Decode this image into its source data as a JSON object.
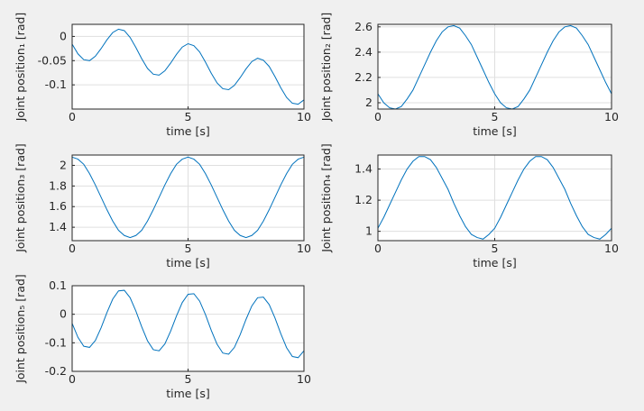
{
  "chart_data": [
    {
      "type": "line",
      "xlabel": "time [s]",
      "ylabel": "Joint position₁ [rad]",
      "grid": true,
      "xlim": [
        0,
        10
      ],
      "xticks": [
        0,
        5,
        10
      ],
      "ylim": [
        -0.15,
        0.025
      ],
      "yticks": [
        -0.1,
        -0.05,
        0
      ],
      "x": [
        0,
        0.25,
        0.5,
        0.75,
        1,
        1.25,
        1.5,
        1.75,
        2,
        2.25,
        2.5,
        2.75,
        3,
        3.25,
        3.5,
        3.75,
        4,
        4.25,
        4.5,
        4.75,
        5,
        5.25,
        5.5,
        5.75,
        6,
        6.25,
        6.5,
        6.75,
        7,
        7.25,
        7.5,
        7.75,
        8,
        8.25,
        8.5,
        8.75,
        9,
        9.25,
        9.5,
        9.75,
        10
      ],
      "series": [
        {
          "color": "#0072bd",
          "values": [
            -0.016,
            -0.036,
            -0.048,
            -0.05,
            -0.041,
            -0.025,
            -0.007,
            0.008,
            0.015,
            0.012,
            -0.002,
            -0.023,
            -0.046,
            -0.066,
            -0.078,
            -0.08,
            -0.071,
            -0.055,
            -0.037,
            -0.022,
            -0.015,
            -0.019,
            -0.032,
            -0.053,
            -0.076,
            -0.096,
            -0.108,
            -0.11,
            -0.101,
            -0.085,
            -0.067,
            -0.052,
            -0.045,
            -0.049,
            -0.062,
            -0.083,
            -0.106,
            -0.126,
            -0.138,
            -0.14,
            -0.131
          ]
        }
      ]
    },
    {
      "type": "line",
      "xlabel": "time [s]",
      "ylabel": "Joint position₂ [rad]",
      "grid": true,
      "xlim": [
        0,
        10
      ],
      "xticks": [
        0,
        5,
        10
      ],
      "ylim": [
        1.95,
        2.62
      ],
      "yticks": [
        2,
        2.2,
        2.4,
        2.6
      ],
      "x": [
        0,
        0.25,
        0.5,
        0.75,
        1,
        1.25,
        1.5,
        1.75,
        2,
        2.25,
        2.5,
        2.75,
        3,
        3.25,
        3.5,
        3.75,
        4,
        4.25,
        4.5,
        4.75,
        5,
        5.25,
        5.5,
        5.75,
        6,
        6.25,
        6.5,
        6.75,
        7,
        7.25,
        7.5,
        7.75,
        8,
        8.25,
        8.5,
        8.75,
        9,
        9.25,
        9.5,
        9.75,
        10
      ],
      "series": [
        {
          "color": "#0072bd",
          "values": [
            2.07,
            2.0,
            1.96,
            1.95,
            1.97,
            2.03,
            2.1,
            2.2,
            2.3,
            2.4,
            2.49,
            2.56,
            2.6,
            2.61,
            2.59,
            2.53,
            2.46,
            2.36,
            2.26,
            2.16,
            2.07,
            2.0,
            1.96,
            1.95,
            1.97,
            2.03,
            2.1,
            2.2,
            2.3,
            2.4,
            2.49,
            2.56,
            2.6,
            2.61,
            2.59,
            2.53,
            2.46,
            2.36,
            2.26,
            2.16,
            2.07
          ]
        }
      ]
    },
    {
      "type": "line",
      "xlabel": "time [s]",
      "ylabel": "Joint position₃ [rad]",
      "grid": true,
      "xlim": [
        0,
        10
      ],
      "xticks": [
        0,
        5,
        10
      ],
      "ylim": [
        1.27,
        2.1
      ],
      "yticks": [
        1.4,
        1.6,
        1.8,
        2
      ],
      "x": [
        0,
        0.25,
        0.5,
        0.75,
        1,
        1.25,
        1.5,
        1.75,
        2,
        2.25,
        2.5,
        2.75,
        3,
        3.25,
        3.5,
        3.75,
        4,
        4.25,
        4.5,
        4.75,
        5,
        5.25,
        5.5,
        5.75,
        6,
        6.25,
        6.5,
        6.75,
        7,
        7.25,
        7.5,
        7.75,
        8,
        8.25,
        8.5,
        8.75,
        9,
        9.25,
        9.5,
        9.75,
        10
      ],
      "series": [
        {
          "color": "#0072bd",
          "values": [
            2.08,
            2.06,
            2.01,
            1.92,
            1.81,
            1.69,
            1.57,
            1.46,
            1.37,
            1.32,
            1.3,
            1.32,
            1.37,
            1.46,
            1.57,
            1.69,
            1.81,
            1.92,
            2.01,
            2.06,
            2.08,
            2.06,
            2.01,
            1.92,
            1.81,
            1.69,
            1.57,
            1.46,
            1.37,
            1.32,
            1.3,
            1.32,
            1.37,
            1.46,
            1.57,
            1.69,
            1.81,
            1.92,
            2.01,
            2.06,
            2.08
          ]
        }
      ]
    },
    {
      "type": "line",
      "xlabel": "time [s]",
      "ylabel": "Joint position₄ [rad]",
      "grid": true,
      "xlim": [
        0,
        10
      ],
      "xticks": [
        0,
        5,
        10
      ],
      "ylim": [
        0.94,
        1.49
      ],
      "yticks": [
        1,
        1.2,
        1.4
      ],
      "x": [
        0,
        0.25,
        0.5,
        0.75,
        1,
        1.25,
        1.5,
        1.75,
        2,
        2.25,
        2.5,
        2.75,
        3,
        3.25,
        3.5,
        3.75,
        4,
        4.25,
        4.5,
        4.75,
        5,
        5.25,
        5.5,
        5.75,
        6,
        6.25,
        6.5,
        6.75,
        7,
        7.25,
        7.5,
        7.75,
        8,
        8.25,
        8.5,
        8.75,
        9,
        9.25,
        9.5,
        9.75,
        10
      ],
      "series": [
        {
          "color": "#0072bd",
          "values": [
            1.02,
            1.09,
            1.17,
            1.25,
            1.33,
            1.4,
            1.45,
            1.48,
            1.48,
            1.46,
            1.41,
            1.34,
            1.27,
            1.18,
            1.1,
            1.03,
            0.98,
            0.96,
            0.95,
            0.98,
            1.02,
            1.09,
            1.17,
            1.25,
            1.33,
            1.4,
            1.45,
            1.48,
            1.48,
            1.46,
            1.41,
            1.34,
            1.27,
            1.18,
            1.1,
            1.03,
            0.98,
            0.96,
            0.95,
            0.98,
            1.02
          ]
        }
      ]
    },
    {
      "type": "line",
      "xlabel": "time [s]",
      "ylabel": "Joint position₅ [rad]",
      "grid": true,
      "xlim": [
        0,
        10
      ],
      "xticks": [
        0,
        5,
        10
      ],
      "ylim": [
        -0.2,
        0.1
      ],
      "yticks": [
        -0.2,
        -0.1,
        0,
        0.1
      ],
      "x": [
        0,
        0.25,
        0.5,
        0.75,
        1,
        1.25,
        1.5,
        1.75,
        2,
        2.25,
        2.5,
        2.75,
        3,
        3.25,
        3.5,
        3.75,
        4,
        4.25,
        4.5,
        4.75,
        5,
        5.25,
        5.5,
        5.75,
        6,
        6.25,
        6.5,
        6.75,
        7,
        7.25,
        7.5,
        7.75,
        8,
        8.25,
        8.5,
        8.75,
        9,
        9.25,
        9.5,
        9.75,
        10
      ],
      "series": [
        {
          "color": "#0072bd",
          "values": [
            -0.032,
            -0.081,
            -0.112,
            -0.116,
            -0.092,
            -0.047,
            0.006,
            0.053,
            0.082,
            0.084,
            0.058,
            0.011,
            -0.044,
            -0.093,
            -0.124,
            -0.128,
            -0.104,
            -0.059,
            -0.006,
            0.041,
            0.07,
            0.072,
            0.046,
            -0.001,
            -0.056,
            -0.105,
            -0.136,
            -0.14,
            -0.116,
            -0.071,
            -0.018,
            0.029,
            0.058,
            0.06,
            0.034,
            -0.013,
            -0.068,
            -0.117,
            -0.148,
            -0.152,
            -0.128
          ]
        }
      ]
    }
  ]
}
